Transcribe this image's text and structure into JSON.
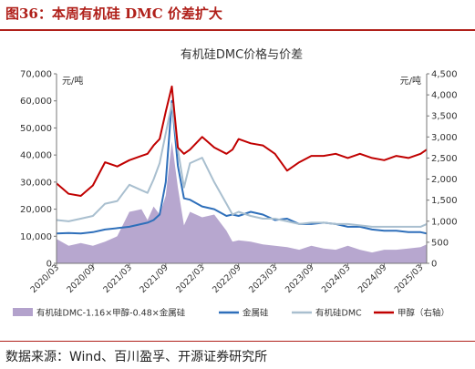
{
  "figure_title": "图36：本周有机硅 DMC 价差扩大",
  "source_text": "数据来源：Wind、百川盈孚、开源证券研究所",
  "chart_data": {
    "type": "line",
    "title": "有机硅DMC价格与价差",
    "left_unit": "元/吨",
    "right_unit": "元/吨",
    "left_ylim": [
      0,
      70000
    ],
    "right_ylim": [
      0,
      4500
    ],
    "left_ticks": [
      "0",
      "10,000",
      "20,000",
      "30,000",
      "40,000",
      "50,000",
      "60,000",
      "70,000"
    ],
    "right_ticks": [
      "0",
      "500",
      "1,000",
      "1,500",
      "2,000",
      "2,500",
      "3,000",
      "3,500",
      "4,000",
      "4,500"
    ],
    "x_ticks": [
      "2020/03",
      "2020/09",
      "2021/03",
      "2021/09",
      "2022/03",
      "2022/09",
      "2023/03",
      "2023/09",
      "2024/03",
      "2024/09",
      "2025/03"
    ],
    "x": [
      "2020/03",
      "2020/05",
      "2020/07",
      "2020/09",
      "2020/11",
      "2021/01",
      "2021/03",
      "2021/05",
      "2021/06",
      "2021/07",
      "2021/08",
      "2021/09",
      "2021/10",
      "2021/11",
      "2021/12",
      "2022/01",
      "2022/03",
      "2022/05",
      "2022/07",
      "2022/08",
      "2022/09",
      "2022/11",
      "2023/01",
      "2023/03",
      "2023/05",
      "2023/07",
      "2023/09",
      "2023/11",
      "2024/01",
      "2024/03",
      "2024/05",
      "2024/07",
      "2024/09",
      "2024/11",
      "2025/01",
      "2025/03",
      "2025/04"
    ],
    "series": [
      {
        "name": "有机硅DMC-1.16×甲醇-0.48×金属硅",
        "axis": "left",
        "color": "#b3a2cc",
        "style": "area",
        "values": [
          9000,
          6500,
          7500,
          6500,
          8000,
          10000,
          19000,
          20000,
          16000,
          21000,
          18000,
          25000,
          45000,
          28000,
          14000,
          19000,
          17000,
          18000,
          12000,
          8000,
          8500,
          8000,
          7000,
          6500,
          6000,
          5000,
          6500,
          5500,
          5000,
          6500,
          5000,
          4000,
          5000,
          5000,
          5500,
          6000,
          7000
        ]
      },
      {
        "name": "金属硅",
        "axis": "left",
        "color": "#2e6fba",
        "style": "line",
        "values": [
          11000,
          11200,
          11000,
          11500,
          12500,
          13000,
          13500,
          14500,
          15000,
          16000,
          18000,
          30000,
          60000,
          36000,
          24000,
          23500,
          21000,
          20000,
          17500,
          18000,
          17500,
          19000,
          18000,
          16000,
          16500,
          14500,
          14500,
          15000,
          14500,
          13500,
          13500,
          12500,
          12000,
          12000,
          11500,
          11500,
          11000
        ]
      },
      {
        "name": "有机硅DMC",
        "axis": "left",
        "color": "#a9bfcf",
        "style": "line",
        "values": [
          16000,
          15500,
          16500,
          17500,
          22000,
          23000,
          29000,
          27000,
          26000,
          31000,
          37000,
          48000,
          59000,
          42000,
          28000,
          37000,
          39000,
          30000,
          22000,
          18000,
          19000,
          17500,
          16500,
          16500,
          15500,
          14500,
          15000,
          15000,
          14500,
          14500,
          14000,
          13500,
          13500,
          13500,
          13500,
          13500,
          14500
        ]
      },
      {
        "name": "甲醇（右轴）",
        "axis": "right",
        "color": "#c00000",
        "style": "line",
        "values": [
          1900,
          1650,
          1600,
          1850,
          2400,
          2300,
          2450,
          2550,
          2600,
          2800,
          2950,
          3600,
          4200,
          2750,
          2600,
          2700,
          3000,
          2750,
          2600,
          2700,
          2950,
          2850,
          2800,
          2600,
          2200,
          2400,
          2550,
          2550,
          2600,
          2500,
          2600,
          2500,
          2450,
          2550,
          2500,
          2600,
          2700
        ]
      }
    ],
    "legend_position": "bottom"
  }
}
